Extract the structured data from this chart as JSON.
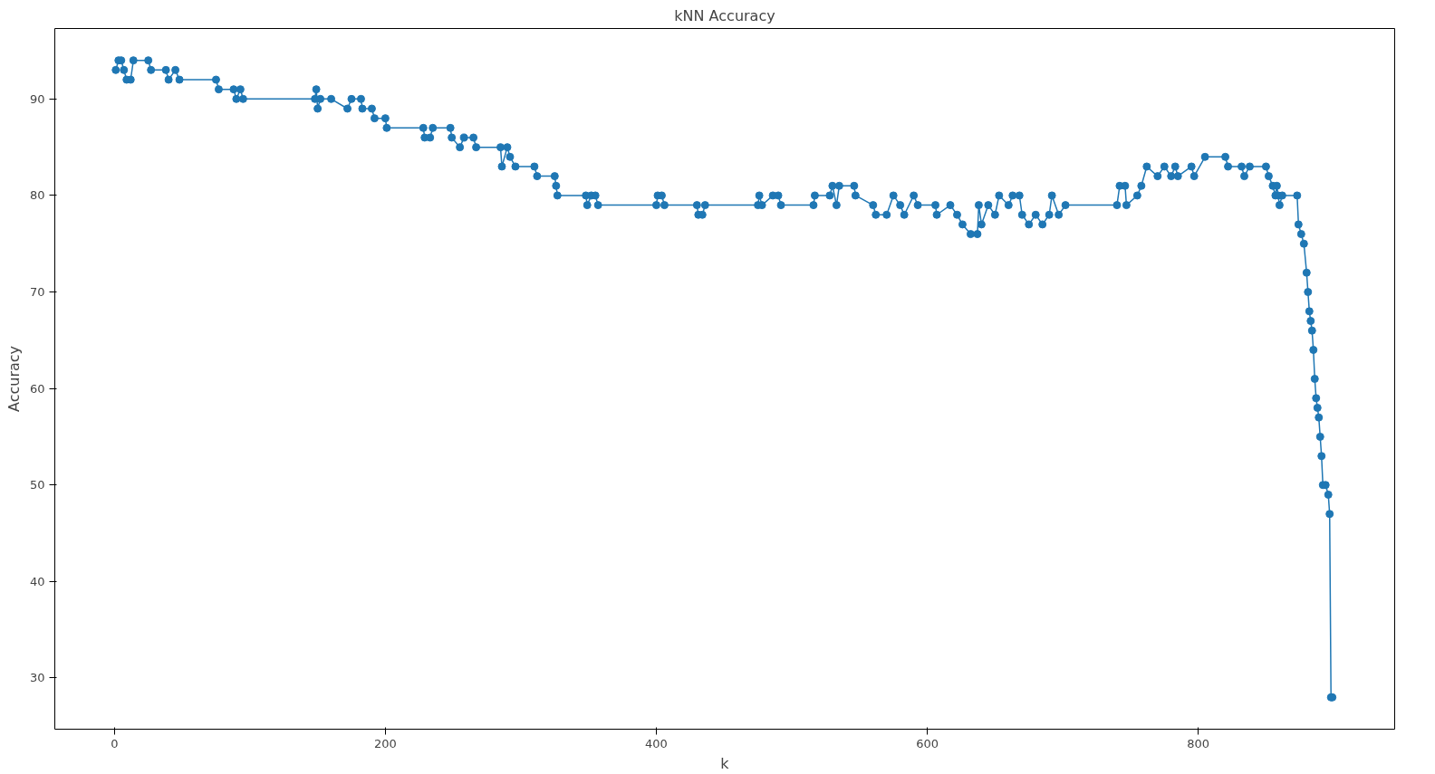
{
  "chart_data": {
    "type": "line",
    "title": "kNN Accuracy",
    "xlabel": "k",
    "ylabel": "Accuracy",
    "x": [
      1,
      3,
      5,
      7,
      9,
      12,
      14,
      25,
      27,
      38,
      40,
      45,
      48,
      75,
      77,
      88,
      90,
      93,
      95,
      148,
      149,
      150,
      152,
      160,
      172,
      175,
      182,
      183,
      190,
      192,
      200,
      201,
      228,
      229,
      233,
      235,
      248,
      249,
      255,
      258,
      265,
      267,
      285,
      286,
      290,
      292,
      296,
      310,
      312,
      325,
      326,
      327,
      348,
      349,
      352,
      355,
      357,
      400,
      401,
      404,
      406,
      430,
      431,
      434,
      436,
      475,
      476,
      478,
      486,
      490,
      492,
      516,
      517,
      528,
      530,
      533,
      535,
      546,
      547,
      560,
      562,
      570,
      575,
      580,
      583,
      590,
      593,
      606,
      607,
      617,
      622,
      626,
      632,
      637,
      638,
      640,
      645,
      650,
      653,
      660,
      663,
      668,
      670,
      675,
      680,
      685,
      690,
      692,
      697,
      702,
      740,
      742,
      746,
      747,
      755,
      758,
      762,
      770,
      775,
      780,
      783,
      785,
      795,
      797,
      805,
      820,
      822,
      832,
      834,
      838,
      850,
      852,
      855,
      857,
      858,
      859,
      860,
      862,
      873,
      874,
      876,
      878,
      880,
      881,
      882,
      883,
      884,
      885,
      886,
      887,
      888,
      889,
      890,
      891,
      892,
      894,
      896,
      897,
      898,
      899
    ],
    "series": [
      {
        "color": "#1f77b4",
        "values": [
          93,
          94,
          94,
          93,
          92,
          92,
          94,
          94,
          93,
          93,
          92,
          93,
          92,
          92,
          91,
          91,
          90,
          91,
          90,
          90,
          91,
          89,
          90,
          90,
          89,
          90,
          90,
          89,
          89,
          88,
          88,
          87,
          87,
          86,
          86,
          87,
          87,
          86,
          85,
          86,
          86,
          85,
          85,
          83,
          85,
          84,
          83,
          83,
          82,
          82,
          81,
          80,
          80,
          79,
          80,
          80,
          79,
          79,
          80,
          80,
          79,
          79,
          78,
          78,
          79,
          79,
          80,
          79,
          80,
          80,
          79,
          79,
          80,
          80,
          81,
          79,
          81,
          81,
          80,
          79,
          78,
          78,
          80,
          79,
          78,
          80,
          79,
          79,
          78,
          79,
          78,
          77,
          76,
          76,
          79,
          77,
          79,
          78,
          80,
          79,
          80,
          80,
          78,
          77,
          78,
          77,
          78,
          80,
          78,
          79,
          79,
          81,
          81,
          79,
          80,
          81,
          83,
          82,
          83,
          82,
          83,
          82,
          83,
          82,
          84,
          84,
          83,
          83,
          82,
          83,
          83,
          82,
          81,
          80,
          81,
          80,
          79,
          80,
          80,
          77,
          76,
          75,
          72,
          70,
          68,
          67,
          66,
          64,
          61,
          59,
          58,
          57,
          55,
          53,
          50,
          50,
          49,
          47,
          28,
          28
        ]
      }
    ],
    "xlim": [
      -44,
      945
    ],
    "ylim": [
      24.7,
      97.3
    ],
    "xticks": [
      0,
      200,
      400,
      600,
      800
    ],
    "yticks": [
      30,
      40,
      50,
      60,
      70,
      80,
      90
    ],
    "marker": "circle",
    "line_style": "solid",
    "grid": false
  }
}
